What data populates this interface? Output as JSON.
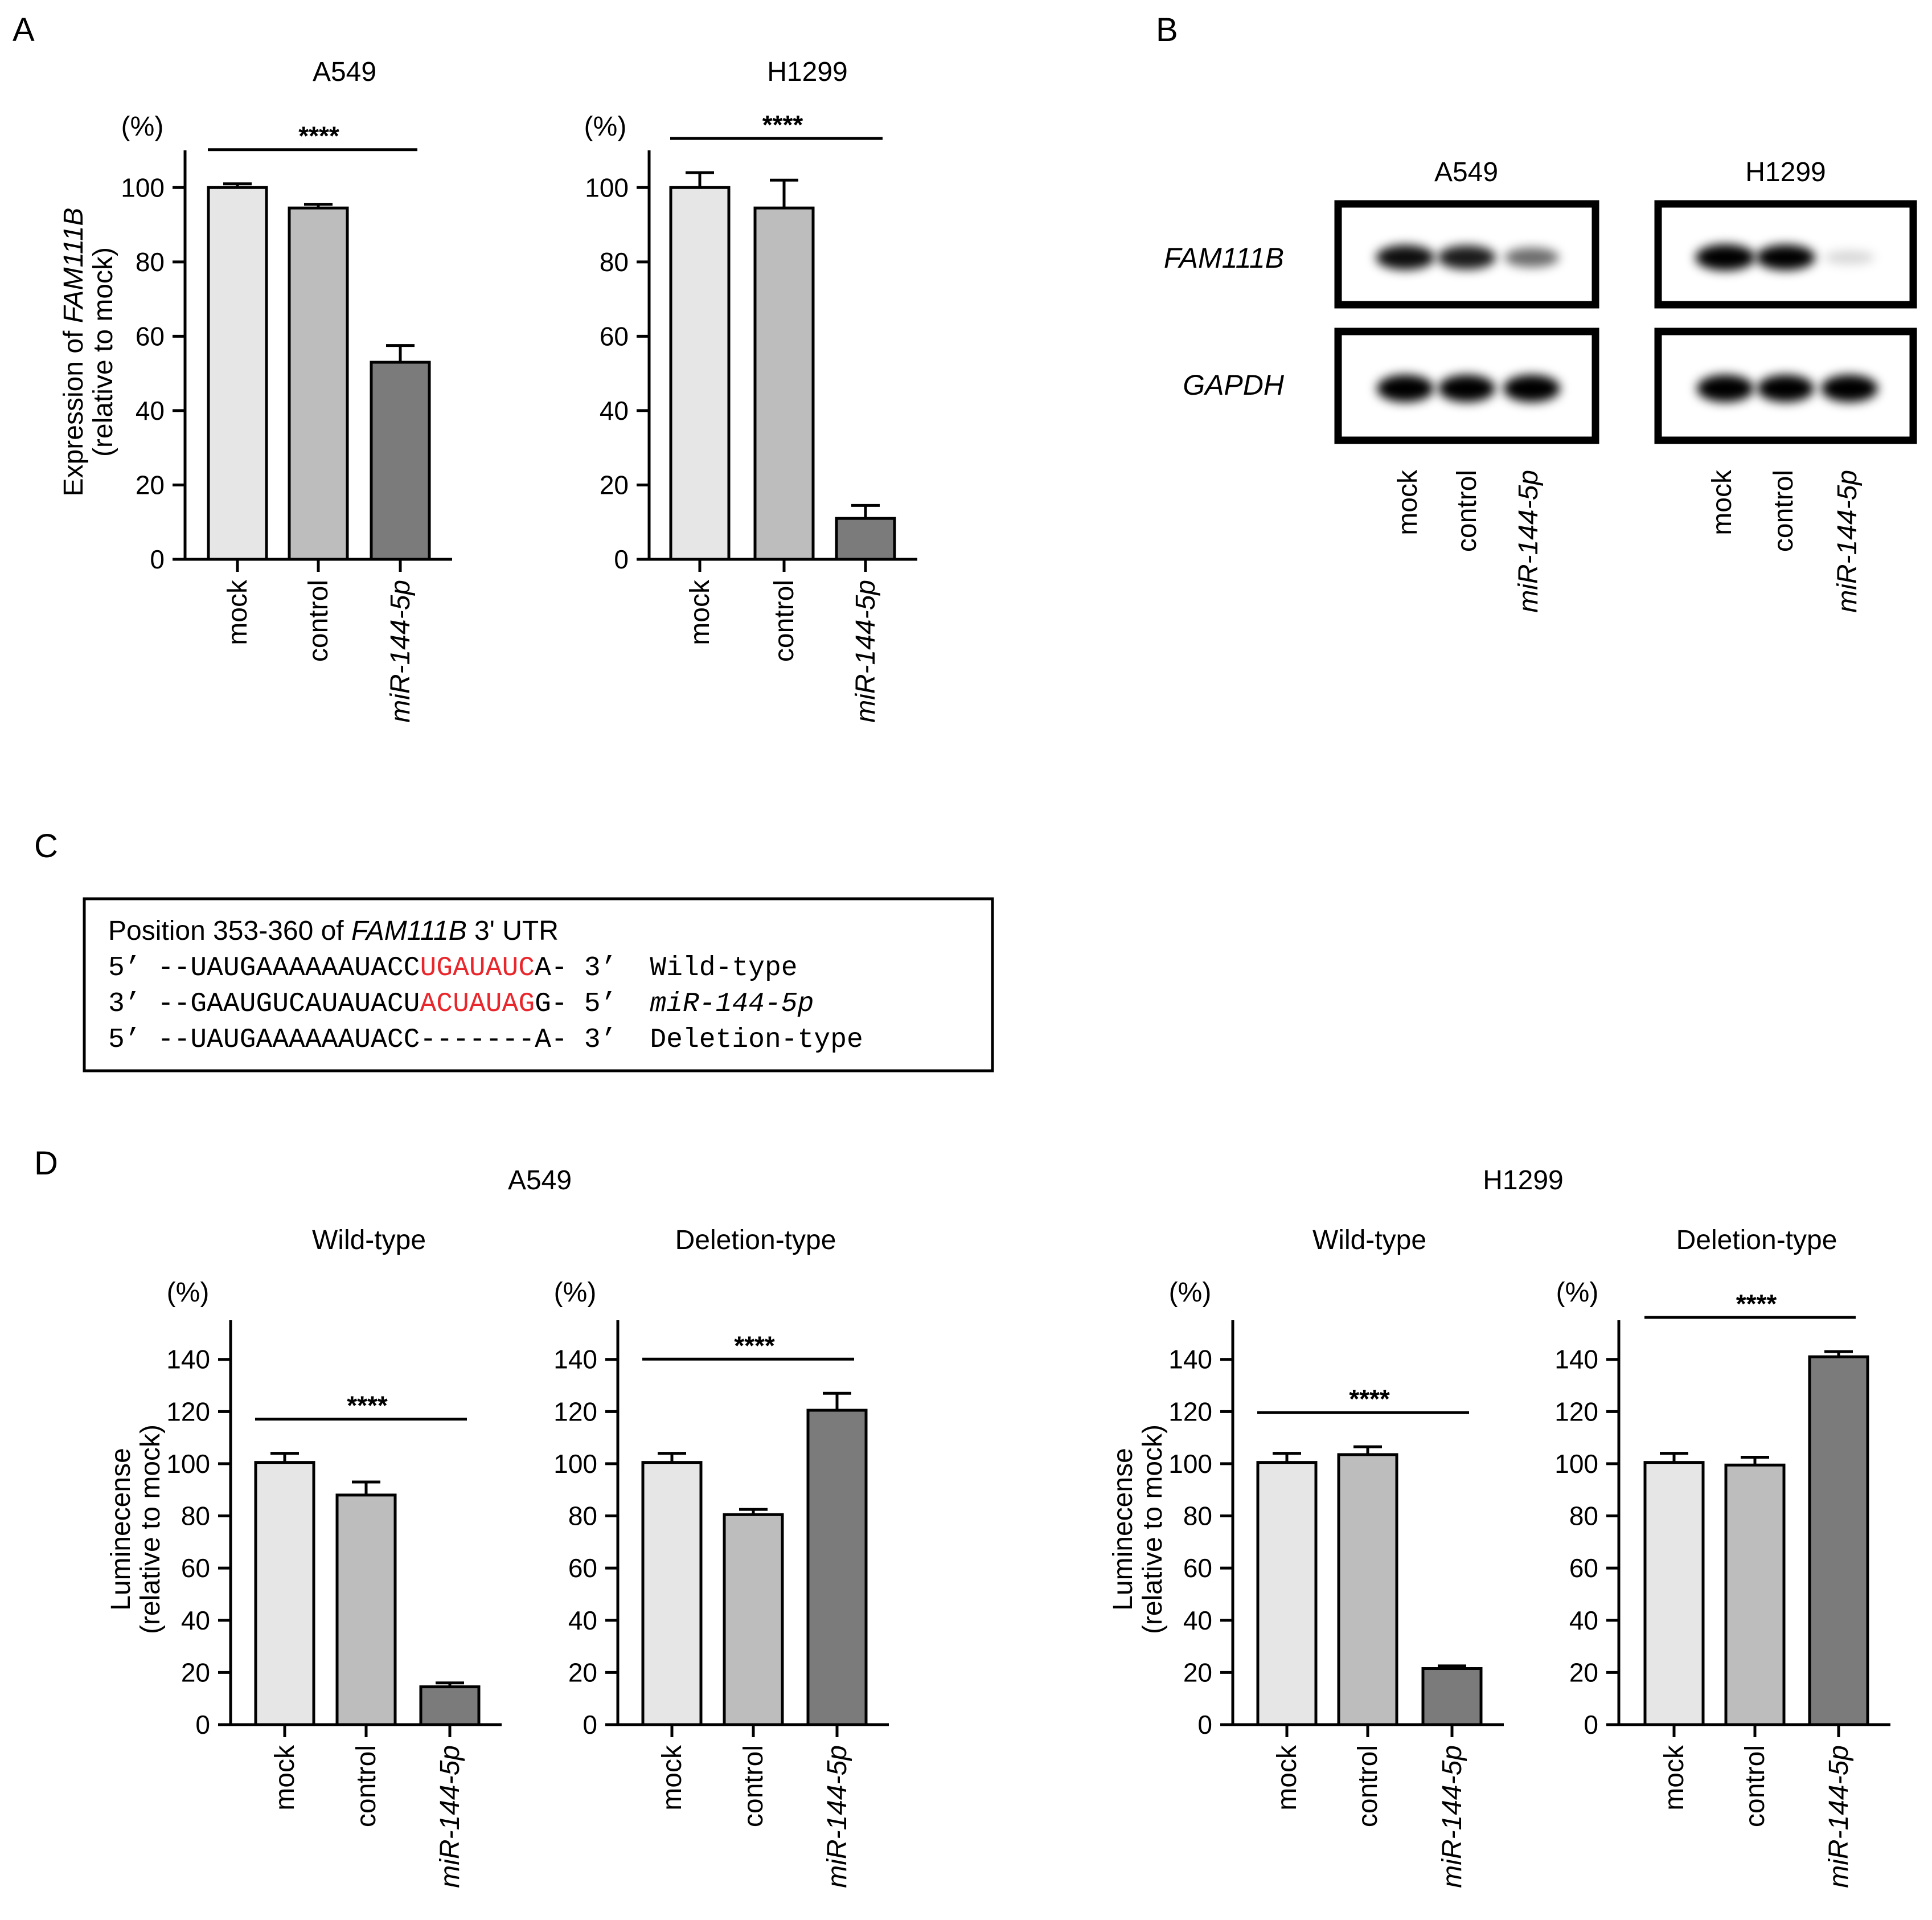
{
  "colors": {
    "mock": "#e6e6e6",
    "control": "#bdbdbd",
    "mir": "#7b7b7b",
    "accent_red": "#e8262b"
  },
  "panel_letters": {
    "a": "A",
    "b": "B",
    "c": "C",
    "d": "D"
  },
  "axis_common": {
    "percent_unit": "(%)"
  },
  "chart_data": [
    {
      "id": "A1",
      "type": "bar",
      "title": "A549",
      "ylabel_line1_prefix": "Expression of ",
      "ylabel_line1_italic": "FAM111B",
      "ylabel_line2": "(relative to mock)",
      "categories": [
        "mock",
        "control",
        "miR-144-5p"
      ],
      "italic_categories": [
        false,
        false,
        true
      ],
      "values": [
        100,
        94.5,
        53
      ],
      "errors": [
        1,
        1,
        4.5
      ],
      "ylim": [
        0,
        110
      ],
      "yticks": [
        0,
        20,
        40,
        60,
        80,
        100
      ],
      "significance": {
        "label": "****",
        "from": 0,
        "to": 2
      }
    },
    {
      "id": "A2",
      "type": "bar",
      "title": "H1299",
      "categories": [
        "mock",
        "control",
        "miR-144-5p"
      ],
      "italic_categories": [
        false,
        false,
        true
      ],
      "values": [
        100,
        94.5,
        11
      ],
      "errors": [
        4,
        7.5,
        3.5
      ],
      "ylim": [
        0,
        110
      ],
      "yticks": [
        0,
        20,
        40,
        60,
        80,
        100
      ],
      "significance": {
        "label": "****",
        "from": 0,
        "to": 2
      }
    },
    {
      "id": "D1",
      "type": "bar",
      "title": "Wild-type",
      "group": "A549",
      "ylabel_line1": "Luminecense",
      "ylabel_line2": "(relative to mock)",
      "categories": [
        "mock",
        "control",
        "miR-144-5p"
      ],
      "italic_categories": [
        false,
        false,
        true
      ],
      "values": [
        100.5,
        88,
        14.5
      ],
      "errors": [
        3.5,
        5,
        1.5
      ],
      "ylim": [
        0,
        155
      ],
      "yticks": [
        0,
        20,
        40,
        60,
        80,
        100,
        120,
        140
      ],
      "significance": {
        "label": "****",
        "from": 0,
        "to": 2
      }
    },
    {
      "id": "D2",
      "type": "bar",
      "title": "Deletion-type",
      "group": "A549",
      "categories": [
        "mock",
        "control",
        "miR-144-5p"
      ],
      "italic_categories": [
        false,
        false,
        true
      ],
      "values": [
        100.5,
        80.5,
        120.5
      ],
      "errors": [
        3.5,
        2,
        6.5
      ],
      "ylim": [
        0,
        155
      ],
      "yticks": [
        0,
        20,
        40,
        60,
        80,
        100,
        120,
        140
      ],
      "significance": {
        "label": "****",
        "from": 0,
        "to": 2
      }
    },
    {
      "id": "D3",
      "type": "bar",
      "title": "Wild-type",
      "group": "H1299",
      "ylabel_line1": "Luminecense",
      "ylabel_line2": "(relative to mock)",
      "categories": [
        "mock",
        "control",
        "miR-144-5p"
      ],
      "italic_categories": [
        false,
        false,
        true
      ],
      "values": [
        100.5,
        103.5,
        21.5
      ],
      "errors": [
        3.5,
        3,
        1
      ],
      "ylim": [
        0,
        155
      ],
      "yticks": [
        0,
        20,
        40,
        60,
        80,
        100,
        120,
        140
      ],
      "significance": {
        "label": "****",
        "from": 0,
        "to": 2
      }
    },
    {
      "id": "D4",
      "type": "bar",
      "title": "Deletion-type",
      "group": "H1299",
      "categories": [
        "mock",
        "control",
        "miR-144-5p"
      ],
      "italic_categories": [
        false,
        false,
        true
      ],
      "values": [
        100.5,
        99.5,
        141
      ],
      "errors": [
        3.5,
        3,
        2
      ],
      "ylim": [
        0,
        155
      ],
      "yticks": [
        0,
        20,
        40,
        60,
        80,
        100,
        120,
        140
      ],
      "significance": {
        "label": "****",
        "from": 0,
        "to": 2
      }
    }
  ],
  "panel_d_groups": {
    "left": "A549",
    "right": "H1299"
  },
  "blot": {
    "cell_lines": [
      "A549",
      "H1299"
    ],
    "proteins": [
      "FAM111B",
      "GAPDH"
    ],
    "lanes": [
      "mock",
      "control",
      "miR-144-5p"
    ],
    "band_intensity": {
      "A549": {
        "FAM111B": [
          0.9,
          0.85,
          0.55
        ],
        "GAPDH": [
          1,
          1,
          1
        ]
      },
      "H1299": {
        "FAM111B": [
          1,
          0.95,
          0.15
        ],
        "GAPDH": [
          1,
          1,
          1
        ]
      }
    }
  },
  "sequence_box": {
    "title_prefix": "Position 353-360 of ",
    "title_italic": "FAM111B",
    "title_suffix": " 3' UTR",
    "rows": [
      {
        "left": "5’",
        "seq_pre": "--UAUGAAAAAAUACC",
        "seq_red": "UGAUAUC",
        "seq_post": "A-",
        "right": "3’",
        "label": "Wild-type",
        "italic_label": false
      },
      {
        "left": "3’",
        "seq_pre": "--GAAUGUCAUAUACU",
        "seq_red": "ACUAUAG",
        "seq_post": "G-",
        "right": "5’",
        "label": "miR-144-5p",
        "italic_label": true
      },
      {
        "left": "5’",
        "seq_pre": "--UAUGAAAAAAUACC",
        "seq_red": "",
        "seq_post": "-------A-",
        "right": "3’",
        "label": "Deletion-type",
        "italic_label": false
      }
    ]
  }
}
